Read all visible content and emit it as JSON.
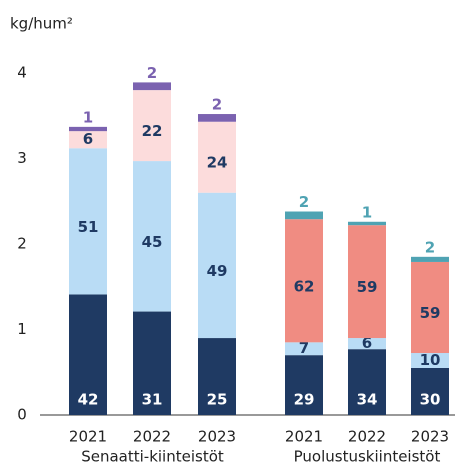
{
  "chart_data": {
    "type": "bar",
    "stacked": true,
    "ylabel": "kg/hum²",
    "ylim": [
      0,
      4
    ],
    "yticks": [
      0,
      1,
      2,
      3,
      4
    ],
    "groups": [
      {
        "label": "Senaatti-kiinteistöt",
        "categories": [
          "2021",
          "2022",
          "2023"
        ],
        "series": [
          {
            "color": "#1f3a63",
            "label_color": "#ffffff",
            "values": [
              1.41,
              1.21,
              0.9
            ],
            "shares": [
              42,
              31,
              25
            ]
          },
          {
            "color": "#b9dcf5",
            "label_color": "#1f3a63",
            "values": [
              1.71,
              1.76,
              1.7
            ],
            "shares": [
              51,
              45,
              49
            ]
          },
          {
            "color": "#fcdcdc",
            "label_color": "#1f3a63",
            "values": [
              0.2,
              0.83,
              0.83
            ],
            "shares": [
              6,
              22,
              24
            ]
          },
          {
            "color": "#7b62b0",
            "label_color": "#7b62b0",
            "values": [
              0.05,
              0.09,
              0.09
            ],
            "shares": [
              1,
              2,
              2
            ]
          }
        ]
      },
      {
        "label": "Puolustuskiinteistöt",
        "categories": [
          "2021",
          "2022",
          "2023"
        ],
        "series": [
          {
            "color": "#1f3a63",
            "label_color": "#ffffff",
            "values": [
              0.7,
              0.77,
              0.55
            ],
            "shares": [
              29,
              34,
              30
            ]
          },
          {
            "color": "#b9dcf5",
            "label_color": "#1f3a63",
            "values": [
              0.15,
              0.13,
              0.175
            ],
            "shares": [
              7,
              6,
              10
            ]
          },
          {
            "color": "#f08c82",
            "label_color": "#1f3a63",
            "values": [
              1.44,
              1.32,
              1.065
            ],
            "shares": [
              62,
              59,
              59
            ]
          },
          {
            "color": "#4fa3b3",
            "label_color": "#4fa3b3",
            "values": [
              0.09,
              0.04,
              0.06
            ],
            "shares": [
              2,
              1,
              2
            ]
          }
        ]
      }
    ]
  }
}
